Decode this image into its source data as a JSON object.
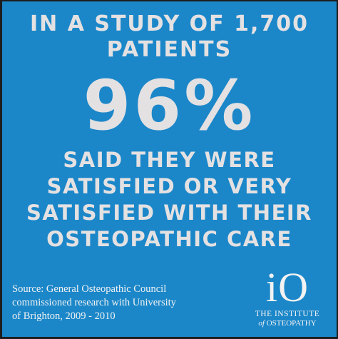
{
  "colors": {
    "background": "#1b87c9",
    "frame": "#1d1d1d",
    "text": "#e4e1e2"
  },
  "headline": {
    "line1": "IN A STUDY OF 1,700",
    "line2": "PATIENTS"
  },
  "stat": {
    "value": "96%"
  },
  "finding": {
    "lines": [
      "SAID THEY WERE",
      "SATISFIED OR VERY",
      "SATISFIED WITH THEIR",
      "OSTEOPATHIC CARE"
    ]
  },
  "source": {
    "lines": [
      "Source: General Osteopathic Council",
      "commissioned research with University",
      "of Brighton, 2009 - 2010"
    ]
  },
  "logo": {
    "mark": "iO",
    "line1": "THE INSTITUTE",
    "line2_of": "of",
    "line2_rest": "OSTEOPATHY"
  }
}
